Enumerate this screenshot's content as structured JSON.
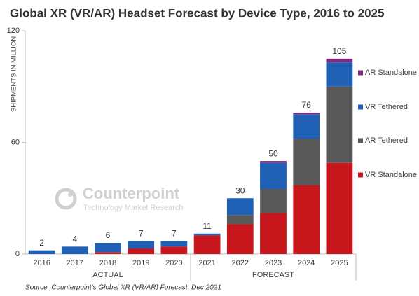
{
  "chart_data": {
    "type": "stacked_bar",
    "title": "Global XR (VR/AR) Headset Forecast by Device Type, 2016 to 2025",
    "y_label": "SHIPMENTS IN MILLION",
    "categories": [
      "2016",
      "2017",
      "2018",
      "2019",
      "2020",
      "2021",
      "2022",
      "2023",
      "2024",
      "2025"
    ],
    "groups": [
      "ACTUAL",
      "FORECAST"
    ],
    "series": [
      {
        "name": "VR Standalone",
        "color": "#c8161d",
        "values": [
          0,
          0,
          1,
          3,
          4,
          10,
          16,
          22,
          37,
          49
        ]
      },
      {
        "name": "AR Tethered",
        "color": "#595959",
        "values": [
          0,
          0,
          0,
          0,
          0,
          0,
          5,
          13,
          25,
          41
        ]
      },
      {
        "name": "VR Tethered",
        "color": "#1f5fb4",
        "values": [
          2,
          4,
          5,
          4,
          3,
          1,
          9,
          14,
          13,
          13
        ]
      },
      {
        "name": "AR Standalone",
        "color": "#7b2c7e",
        "values": [
          0,
          0,
          0,
          0,
          0,
          0,
          0,
          1,
          1,
          2
        ]
      }
    ],
    "totals": [
      2,
      4,
      6,
      7,
      7,
      11,
      30,
      50,
      76,
      105
    ],
    "ylim": [
      0,
      120
    ],
    "yticks": [
      0,
      60,
      120
    ],
    "source": "Source: Counterpoint’s Global XR (VR/AR) Forecast, Dec 2021",
    "watermark": [
      "Counterpoint",
      "Technology Market Research"
    ]
  }
}
